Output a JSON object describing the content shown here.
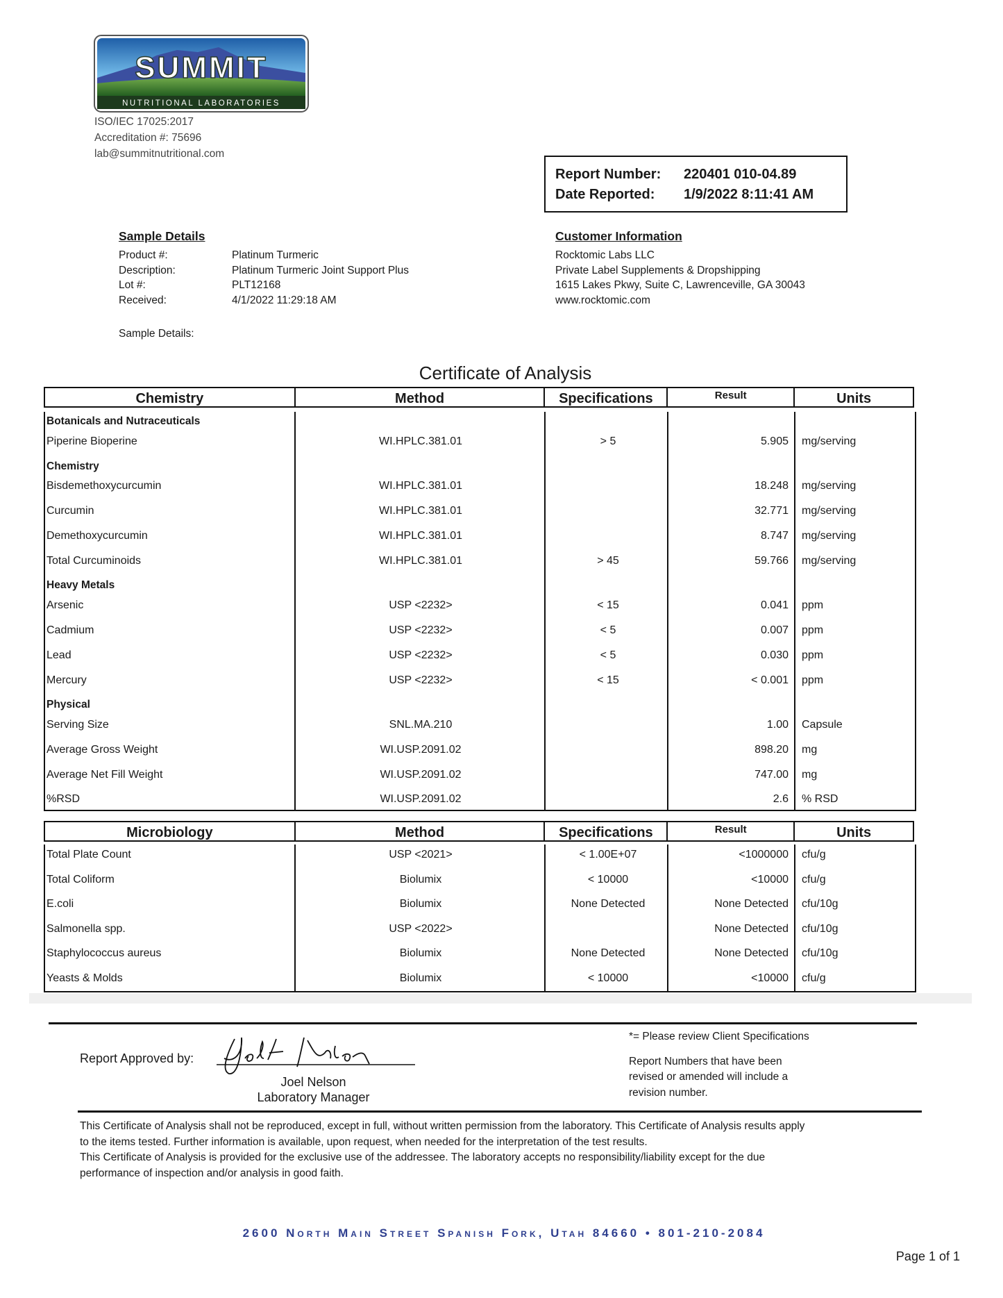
{
  "lab": {
    "logo_text": "SUMMIT",
    "logo_subtext": "NUTRITIONAL LABORATORIES",
    "iso": "ISO/IEC 17025:2017",
    "accreditation": "Accreditation #: 75696",
    "email": "lab@summitnutritional.com",
    "address": "2600 North Main Street Spanish Fork, Utah  84660 • 801-210-2084"
  },
  "report": {
    "number_label": "Report Number:",
    "number": "220401 010-04.89",
    "date_label": "Date Reported:",
    "date": "1/9/2022 8:11:41 AM"
  },
  "sample": {
    "heading": "Sample Details",
    "fields": [
      {
        "label": "Product #:",
        "value": "Platinum Turmeric"
      },
      {
        "label": "Description:",
        "value": "Platinum Turmeric Joint Support Plus"
      },
      {
        "label": "Lot #:",
        "value": "PLT12168"
      },
      {
        "label": "Received:",
        "value": "4/1/2022 11:29:18 AM"
      }
    ],
    "details_label": "Sample Details:"
  },
  "customer": {
    "heading": "Customer Information",
    "lines": [
      "Rocktomic Labs LLC",
      "Private Label Supplements & Dropshipping",
      "1615 Lakes Pkwy, Suite C, Lawrenceville, GA 30043",
      "www.rocktomic.com"
    ]
  },
  "certificate_title": "Certificate of Analysis",
  "chemistry_table": {
    "headers": [
      "Chemistry",
      "Method",
      "Specifications",
      "Result",
      "Units"
    ],
    "rows": [
      {
        "category": "Botanicals and Nutraceuticals"
      },
      {
        "name": "Piperine Bioperine",
        "method": "WI.HPLC.381.01",
        "spec": "> 5",
        "result": "5.905",
        "units": "mg/serving"
      },
      {
        "category": "Chemistry"
      },
      {
        "name": "Bisdemethoxycurcumin",
        "method": "WI.HPLC.381.01",
        "spec": "",
        "result": "18.248",
        "units": "mg/serving"
      },
      {
        "name": "Curcumin",
        "method": "WI.HPLC.381.01",
        "spec": "",
        "result": "32.771",
        "units": "mg/serving"
      },
      {
        "name": "Demethoxycurcumin",
        "method": "WI.HPLC.381.01",
        "spec": "",
        "result": "8.747",
        "units": "mg/serving"
      },
      {
        "name": "Total Curcuminoids",
        "method": "WI.HPLC.381.01",
        "spec": "> 45",
        "result": "59.766",
        "units": "mg/serving"
      },
      {
        "category": "Heavy Metals"
      },
      {
        "name": "Arsenic",
        "method": "USP <2232>",
        "spec": "< 15",
        "result": "0.041",
        "units": "ppm"
      },
      {
        "name": "Cadmium",
        "method": "USP <2232>",
        "spec": "< 5",
        "result": "0.007",
        "units": "ppm"
      },
      {
        "name": "Lead",
        "method": "USP <2232>",
        "spec": "< 5",
        "result": "0.030",
        "units": "ppm"
      },
      {
        "name": "Mercury",
        "method": "USP <2232>",
        "spec": "< 15",
        "result": "< 0.001",
        "units": "ppm"
      },
      {
        "category": "Physical"
      },
      {
        "name": "Serving Size",
        "method": "SNL.MA.210",
        "spec": "",
        "result": "1.00",
        "units": "Capsule"
      },
      {
        "name": "Average Gross Weight",
        "method": "WI.USP.2091.02",
        "spec": "",
        "result": "898.20",
        "units": "mg"
      },
      {
        "name": "Average Net Fill Weight",
        "method": "WI.USP.2091.02",
        "spec": "",
        "result": "747.00",
        "units": "mg"
      },
      {
        "name": "%RSD",
        "method": "WI.USP.2091.02",
        "spec": "",
        "result": "2.6",
        "units": "% RSD"
      }
    ]
  },
  "micro_table": {
    "headers": [
      "Microbiology",
      "Method",
      "Specifications",
      "Result",
      "Units"
    ],
    "rows": [
      {
        "name": "Total Plate Count",
        "method": "USP <2021>",
        "spec": "< 1.00E+07",
        "result": "<1000000",
        "units": "cfu/g"
      },
      {
        "name": "Total Coliform",
        "method": "Biolumix",
        "spec": "< 10000",
        "result": "<10000",
        "units": "cfu/g"
      },
      {
        "name": "E.coli",
        "method": "Biolumix",
        "spec": "None Detected",
        "result": "None Detected",
        "units": "cfu/10g"
      },
      {
        "name": "Salmonella spp.",
        "method": "USP <2022>",
        "spec": "",
        "result": "None Detected",
        "units": "cfu/10g"
      },
      {
        "name": "Staphylococcus aureus",
        "method": "Biolumix",
        "spec": "None Detected",
        "result": "None Detected",
        "units": "cfu/10g"
      },
      {
        "name": "Yeasts & Molds",
        "method": "Biolumix",
        "spec": "< 10000",
        "result": "<10000",
        "units": "cfu/g"
      }
    ]
  },
  "approval": {
    "label": "Report Approved by:",
    "signature": "Joel L Nelson",
    "name": "Joel Nelson",
    "title": "Laboratory Manager"
  },
  "notes": {
    "client_spec": "*= Please review Client Specifications",
    "revision": [
      "Report Numbers that have been",
      "revised or amended will include a",
      "revision number."
    ]
  },
  "disclaimer": [
    "This Certificate of Analysis shall not be reproduced, except in full, without written permission from the laboratory. This Certificate of Analysis results apply",
    "to the items tested. Further information is available, upon request, when needed for the interpretation of the test results.",
    "This Certificate of Analysis is provided for the exclusive use of the addressee. The laboratory accepts no responsibility/liability except for the due",
    "performance of inspection and/or analysis in good faith."
  ],
  "page": "Page 1 of 1",
  "colors": {
    "address_blue": "#2e3f8f",
    "logo_green": "#2f7a2a",
    "logo_sky": "#3b8fd0"
  }
}
